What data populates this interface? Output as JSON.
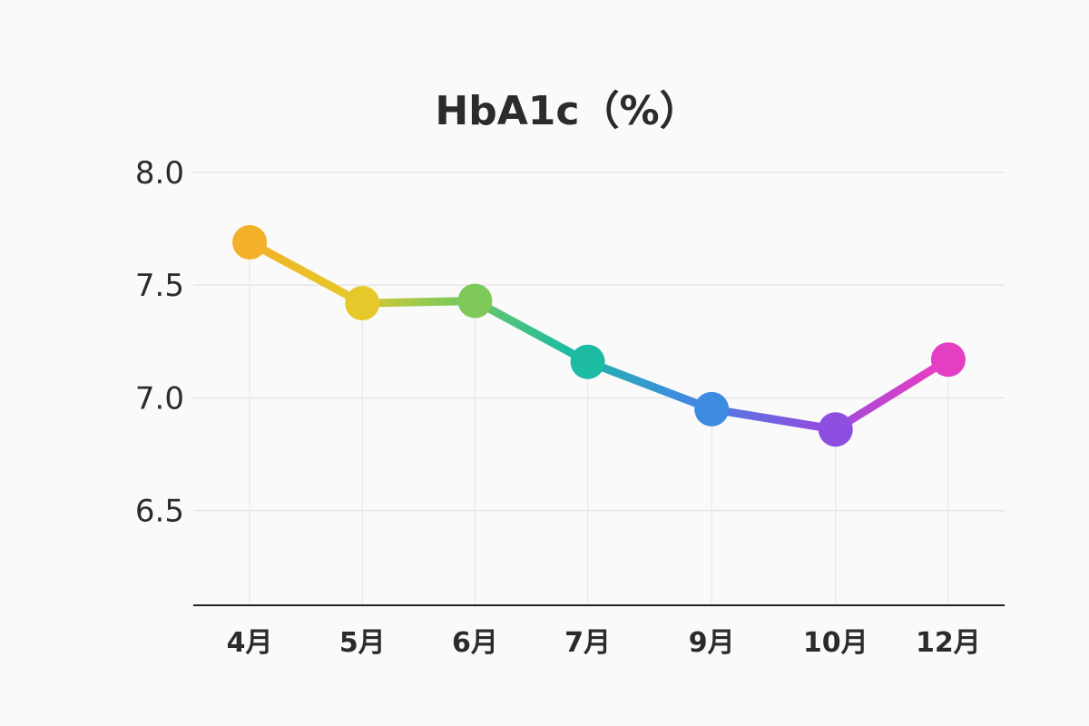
{
  "chart_data": {
    "type": "line",
    "title": "HbA1c（%）",
    "xlabel": "",
    "ylabel": "",
    "categories": [
      "4月",
      "5月",
      "6月",
      "7月",
      "9月",
      "10月",
      "12月"
    ],
    "x_positions": [
      4,
      5,
      6,
      7,
      8.1,
      9.2,
      10.2
    ],
    "series": [
      {
        "values": [
          7.69,
          7.42,
          7.43,
          7.16,
          6.95,
          6.86,
          7.17
        ]
      }
    ],
    "yticks": [
      "8.0",
      "7.5",
      "7.0",
      "6.5"
    ],
    "ylim": [
      6.08,
      8.0
    ],
    "xlim": [
      3.5,
      10.7
    ],
    "grid": true,
    "legend": "none",
    "colors": [
      "#f4b028",
      "#e6c82a",
      "#7fc95a",
      "#1ebba3",
      "#3d8be0",
      "#8e4fe0",
      "#e43ec3"
    ]
  }
}
